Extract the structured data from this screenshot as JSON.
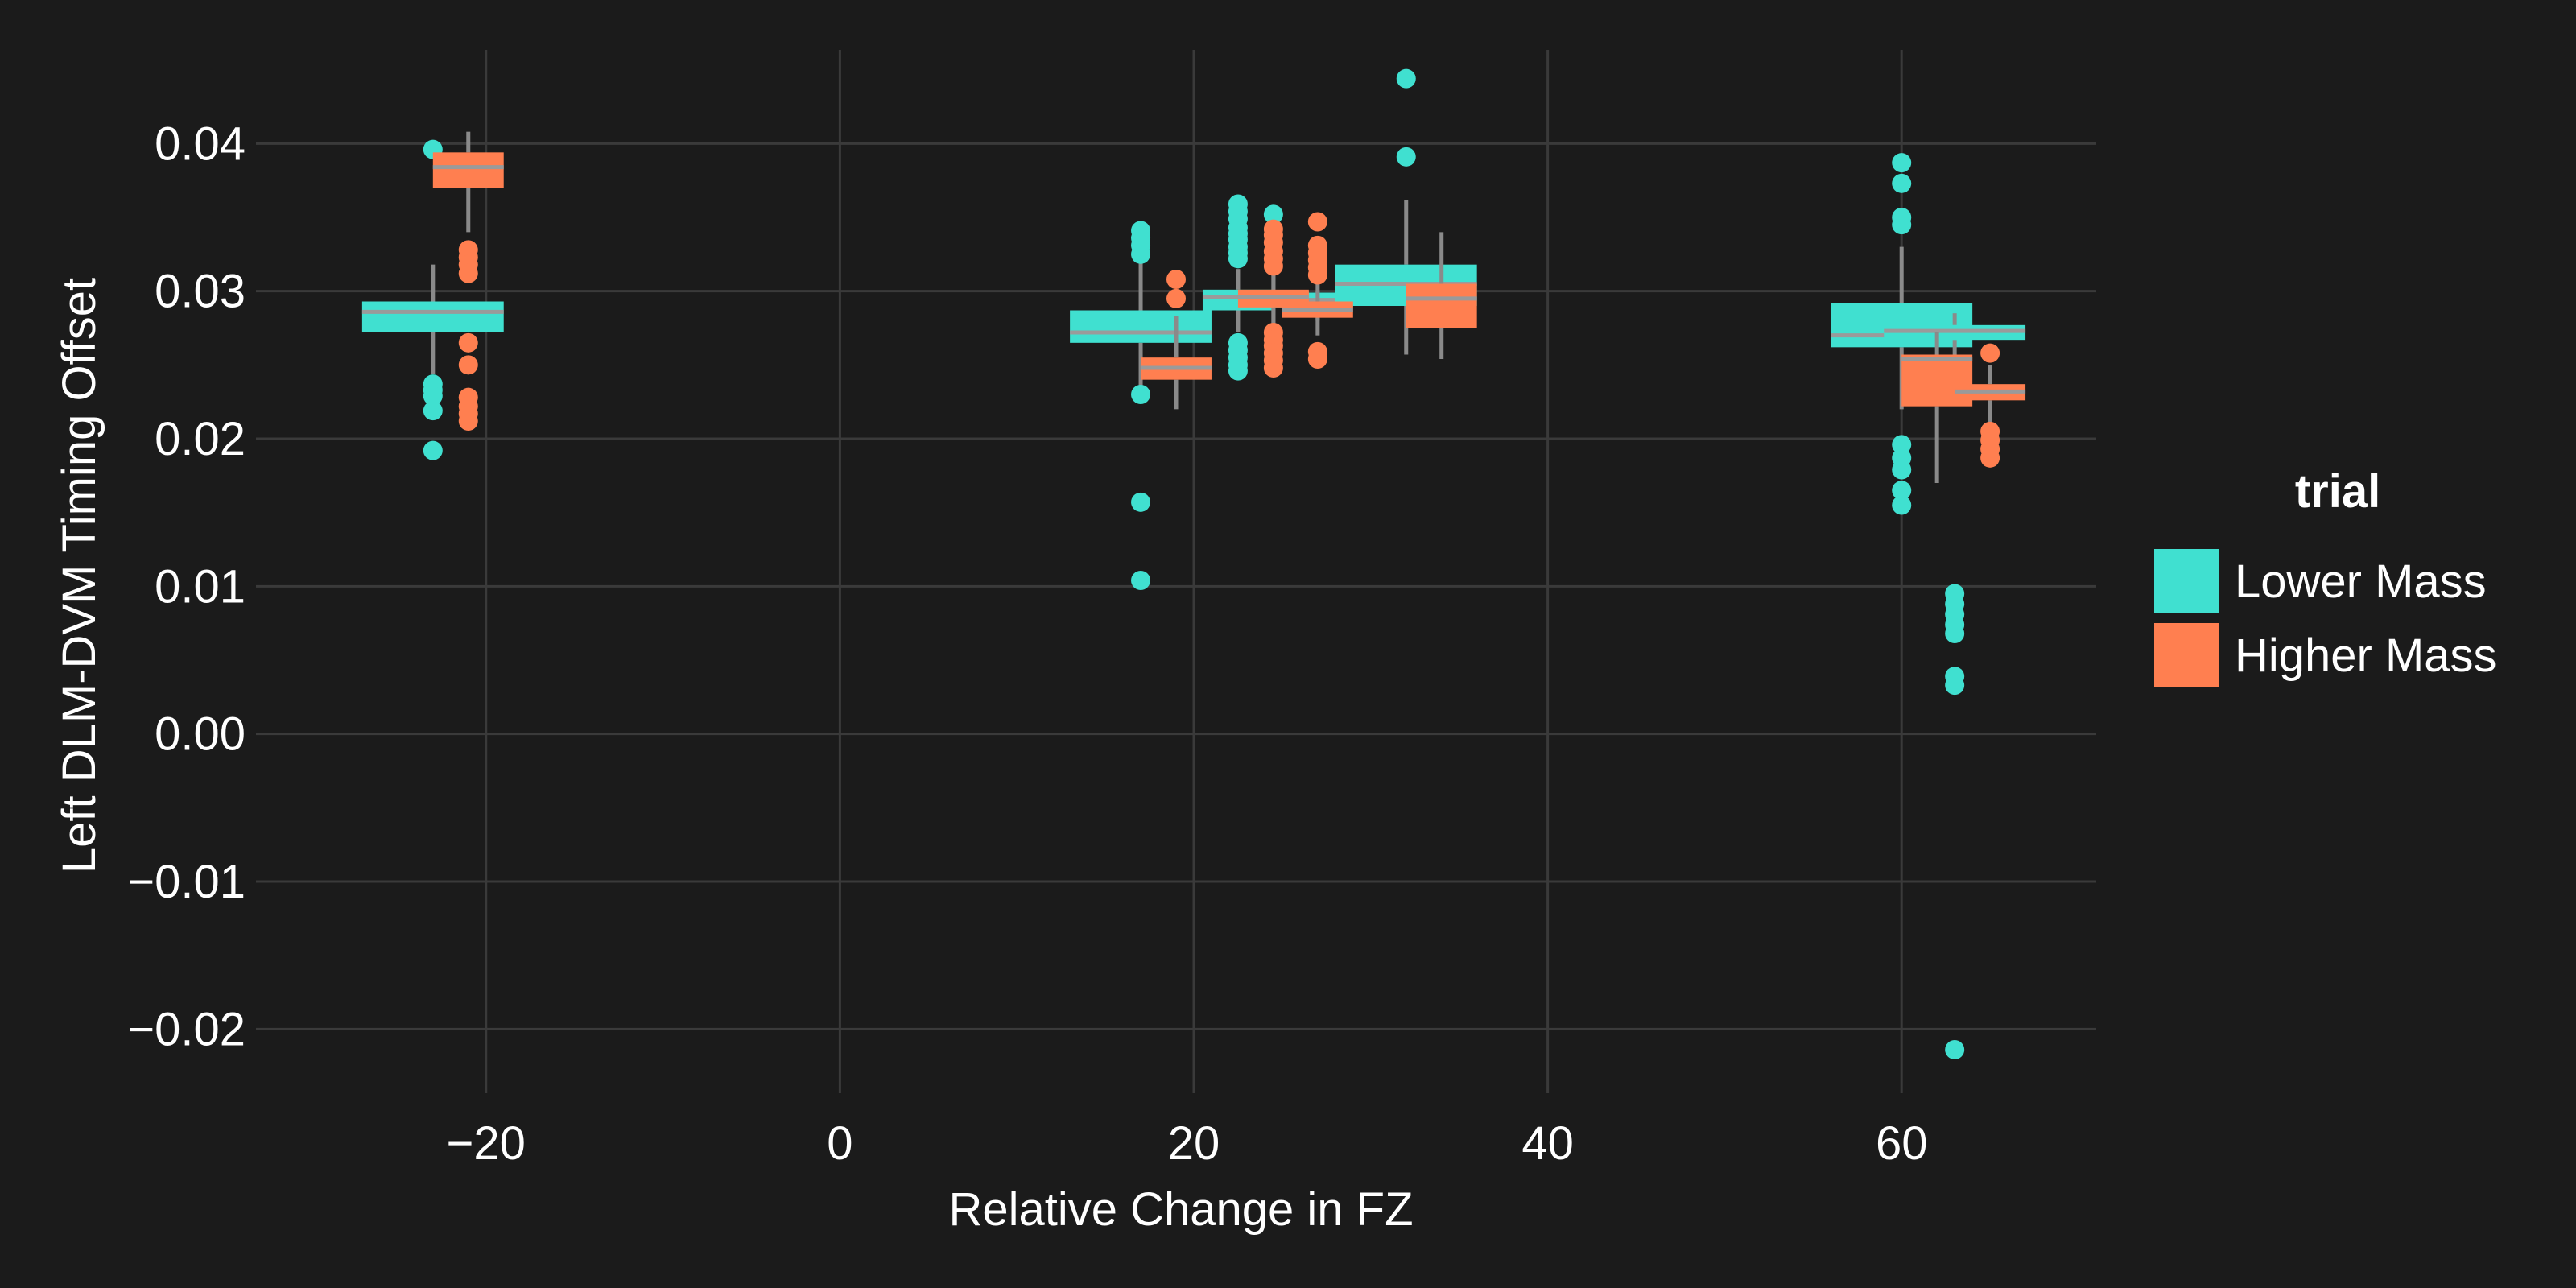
{
  "colors": {
    "background": "#1b1b1b",
    "grid": "#3a3a3a",
    "text": "#ffffff",
    "whisker": "#8a8a8a",
    "median": "#9a9a9a"
  },
  "chart_data": {
    "type": "boxplot",
    "xlabel": "Relative Change in FZ",
    "ylabel": "Left DLM-DVM Timing Offset",
    "xlim": [
      -33,
      71
    ],
    "ylim": [
      -0.025,
      0.047
    ],
    "x_ticks": [
      -20,
      0,
      20,
      40,
      60
    ],
    "x_tick_labels": [
      "−20",
      "0",
      "20",
      "40",
      "60"
    ],
    "y_ticks": [
      -0.02,
      -0.01,
      0.0,
      0.01,
      0.02,
      0.03,
      0.04
    ],
    "y_tick_labels": [
      "−0.02",
      "−0.01",
      "0.00",
      "0.01",
      "0.02",
      "0.03",
      "0.04"
    ],
    "grid": true,
    "legend": {
      "title": "trial",
      "placement": "right",
      "entries": [
        "Lower Mass",
        "Higher Mass"
      ]
    },
    "series": [
      {
        "name": "Lower Mass",
        "color": "#40e0d0",
        "boxes": [
          {
            "x": -23,
            "x0": -27,
            "x1": -19,
            "q1": 0.0272,
            "median": 0.0286,
            "q3": 0.0293,
            "wlo": 0.0244,
            "whi": 0.0318,
            "outliers": [
              0.0396,
              0.0237,
              0.0233,
              0.0229,
              0.0219,
              0.0192
            ]
          },
          {
            "x": 17,
            "x0": 13,
            "x1": 21,
            "q1": 0.0265,
            "median": 0.0272,
            "q3": 0.0287,
            "wlo": 0.0234,
            "whi": 0.0328,
            "outliers": [
              0.0341,
              0.0336,
              0.0331,
              0.0325,
              0.023,
              0.0157,
              0.0104
            ]
          },
          {
            "x": 22.5,
            "x0": 20.5,
            "x1": 24.5,
            "q1": 0.0287,
            "median": 0.0296,
            "q3": 0.0301,
            "wlo": 0.0272,
            "whi": 0.0315,
            "outliers": [
              0.0359,
              0.0354,
              0.0349,
              0.0343,
              0.0339,
              0.0335,
              0.033,
              0.0326,
              0.0322,
              0.0265,
              0.026,
              0.0255,
              0.025,
              0.0246
            ]
          },
          {
            "x": 24.5,
            "x0": 22.5,
            "x1": 26.5,
            "q1": 0.0289,
            "median": 0.0296,
            "q3": 0.03,
            "wlo": 0.0275,
            "whi": 0.032,
            "outliers": [
              0.0352
            ]
          },
          {
            "x": 27,
            "x0": 25,
            "x1": 29,
            "q1": 0.0289,
            "median": 0.0294,
            "q3": 0.0299,
            "wlo": 0.028,
            "whi": 0.0305,
            "outliers": []
          },
          {
            "x": 32,
            "x0": 28,
            "x1": 36,
            "q1": 0.029,
            "median": 0.0305,
            "q3": 0.0318,
            "wlo": 0.0257,
            "whi": 0.0362,
            "outliers": [
              0.0444,
              0.0391
            ]
          },
          {
            "x": 60,
            "x0": 56,
            "x1": 64,
            "q1": 0.0262,
            "median": 0.027,
            "q3": 0.0292,
            "wlo": 0.022,
            "whi": 0.033,
            "outliers": [
              0.0387,
              0.0373,
              0.035,
              0.0345,
              0.0196,
              0.0187,
              0.0179,
              0.0165,
              0.0155
            ]
          },
          {
            "x": 63,
            "x0": 59,
            "x1": 67,
            "q1": 0.0267,
            "median": 0.0273,
            "q3": 0.0277,
            "wlo": 0.0245,
            "whi": 0.0285,
            "outliers": [
              0.0095,
              0.0088,
              0.0081,
              0.0074,
              0.0068,
              0.0039,
              0.0033,
              -0.0214
            ]
          }
        ]
      },
      {
        "name": "Higher Mass",
        "color": "#ff7f50",
        "boxes": [
          {
            "x": -21,
            "x0": -23,
            "x1": -19,
            "q1": 0.037,
            "median": 0.0384,
            "q3": 0.0394,
            "wlo": 0.034,
            "whi": 0.0408,
            "outliers": [
              0.0328,
              0.0323,
              0.0318,
              0.0312,
              0.0265,
              0.025,
              0.0228,
              0.0222,
              0.0217,
              0.0212
            ]
          },
          {
            "x": 19,
            "x0": 17,
            "x1": 21,
            "q1": 0.024,
            "median": 0.0248,
            "q3": 0.0255,
            "wlo": 0.022,
            "whi": 0.0283,
            "outliers": [
              0.0308,
              0.0295
            ]
          },
          {
            "x": 24.5,
            "x0": 22.5,
            "x1": 26.5,
            "q1": 0.0289,
            "median": 0.0296,
            "q3": 0.0301,
            "wlo": 0.0278,
            "whi": 0.0318,
            "outliers": [
              0.0342,
              0.0338,
              0.0333,
              0.0327,
              0.0322,
              0.0317,
              0.0272,
              0.0267,
              0.0263,
              0.0258,
              0.0253,
              0.0248
            ]
          },
          {
            "x": 27,
            "x0": 25,
            "x1": 29,
            "q1": 0.0282,
            "median": 0.0287,
            "q3": 0.0293,
            "wlo": 0.027,
            "whi": 0.03,
            "outliers": [
              0.0347,
              0.0331,
              0.0326,
              0.0321,
              0.0316,
              0.0311,
              0.0259,
              0.0254
            ]
          },
          {
            "x": 34,
            "x0": 32,
            "x1": 36,
            "q1": 0.0275,
            "median": 0.0295,
            "q3": 0.0305,
            "wlo": 0.0254,
            "whi": 0.034,
            "outliers": []
          },
          {
            "x": 62,
            "x0": 60,
            "x1": 64,
            "q1": 0.0222,
            "median": 0.0254,
            "q3": 0.0257,
            "wlo": 0.017,
            "whi": 0.0272,
            "outliers": []
          },
          {
            "x": 65,
            "x0": 63,
            "x1": 67,
            "q1": 0.0226,
            "median": 0.0232,
            "q3": 0.0237,
            "wlo": 0.021,
            "whi": 0.025,
            "outliers": [
              0.0258,
              0.0205,
              0.0199,
              0.0193,
              0.0187
            ]
          }
        ]
      }
    ]
  }
}
